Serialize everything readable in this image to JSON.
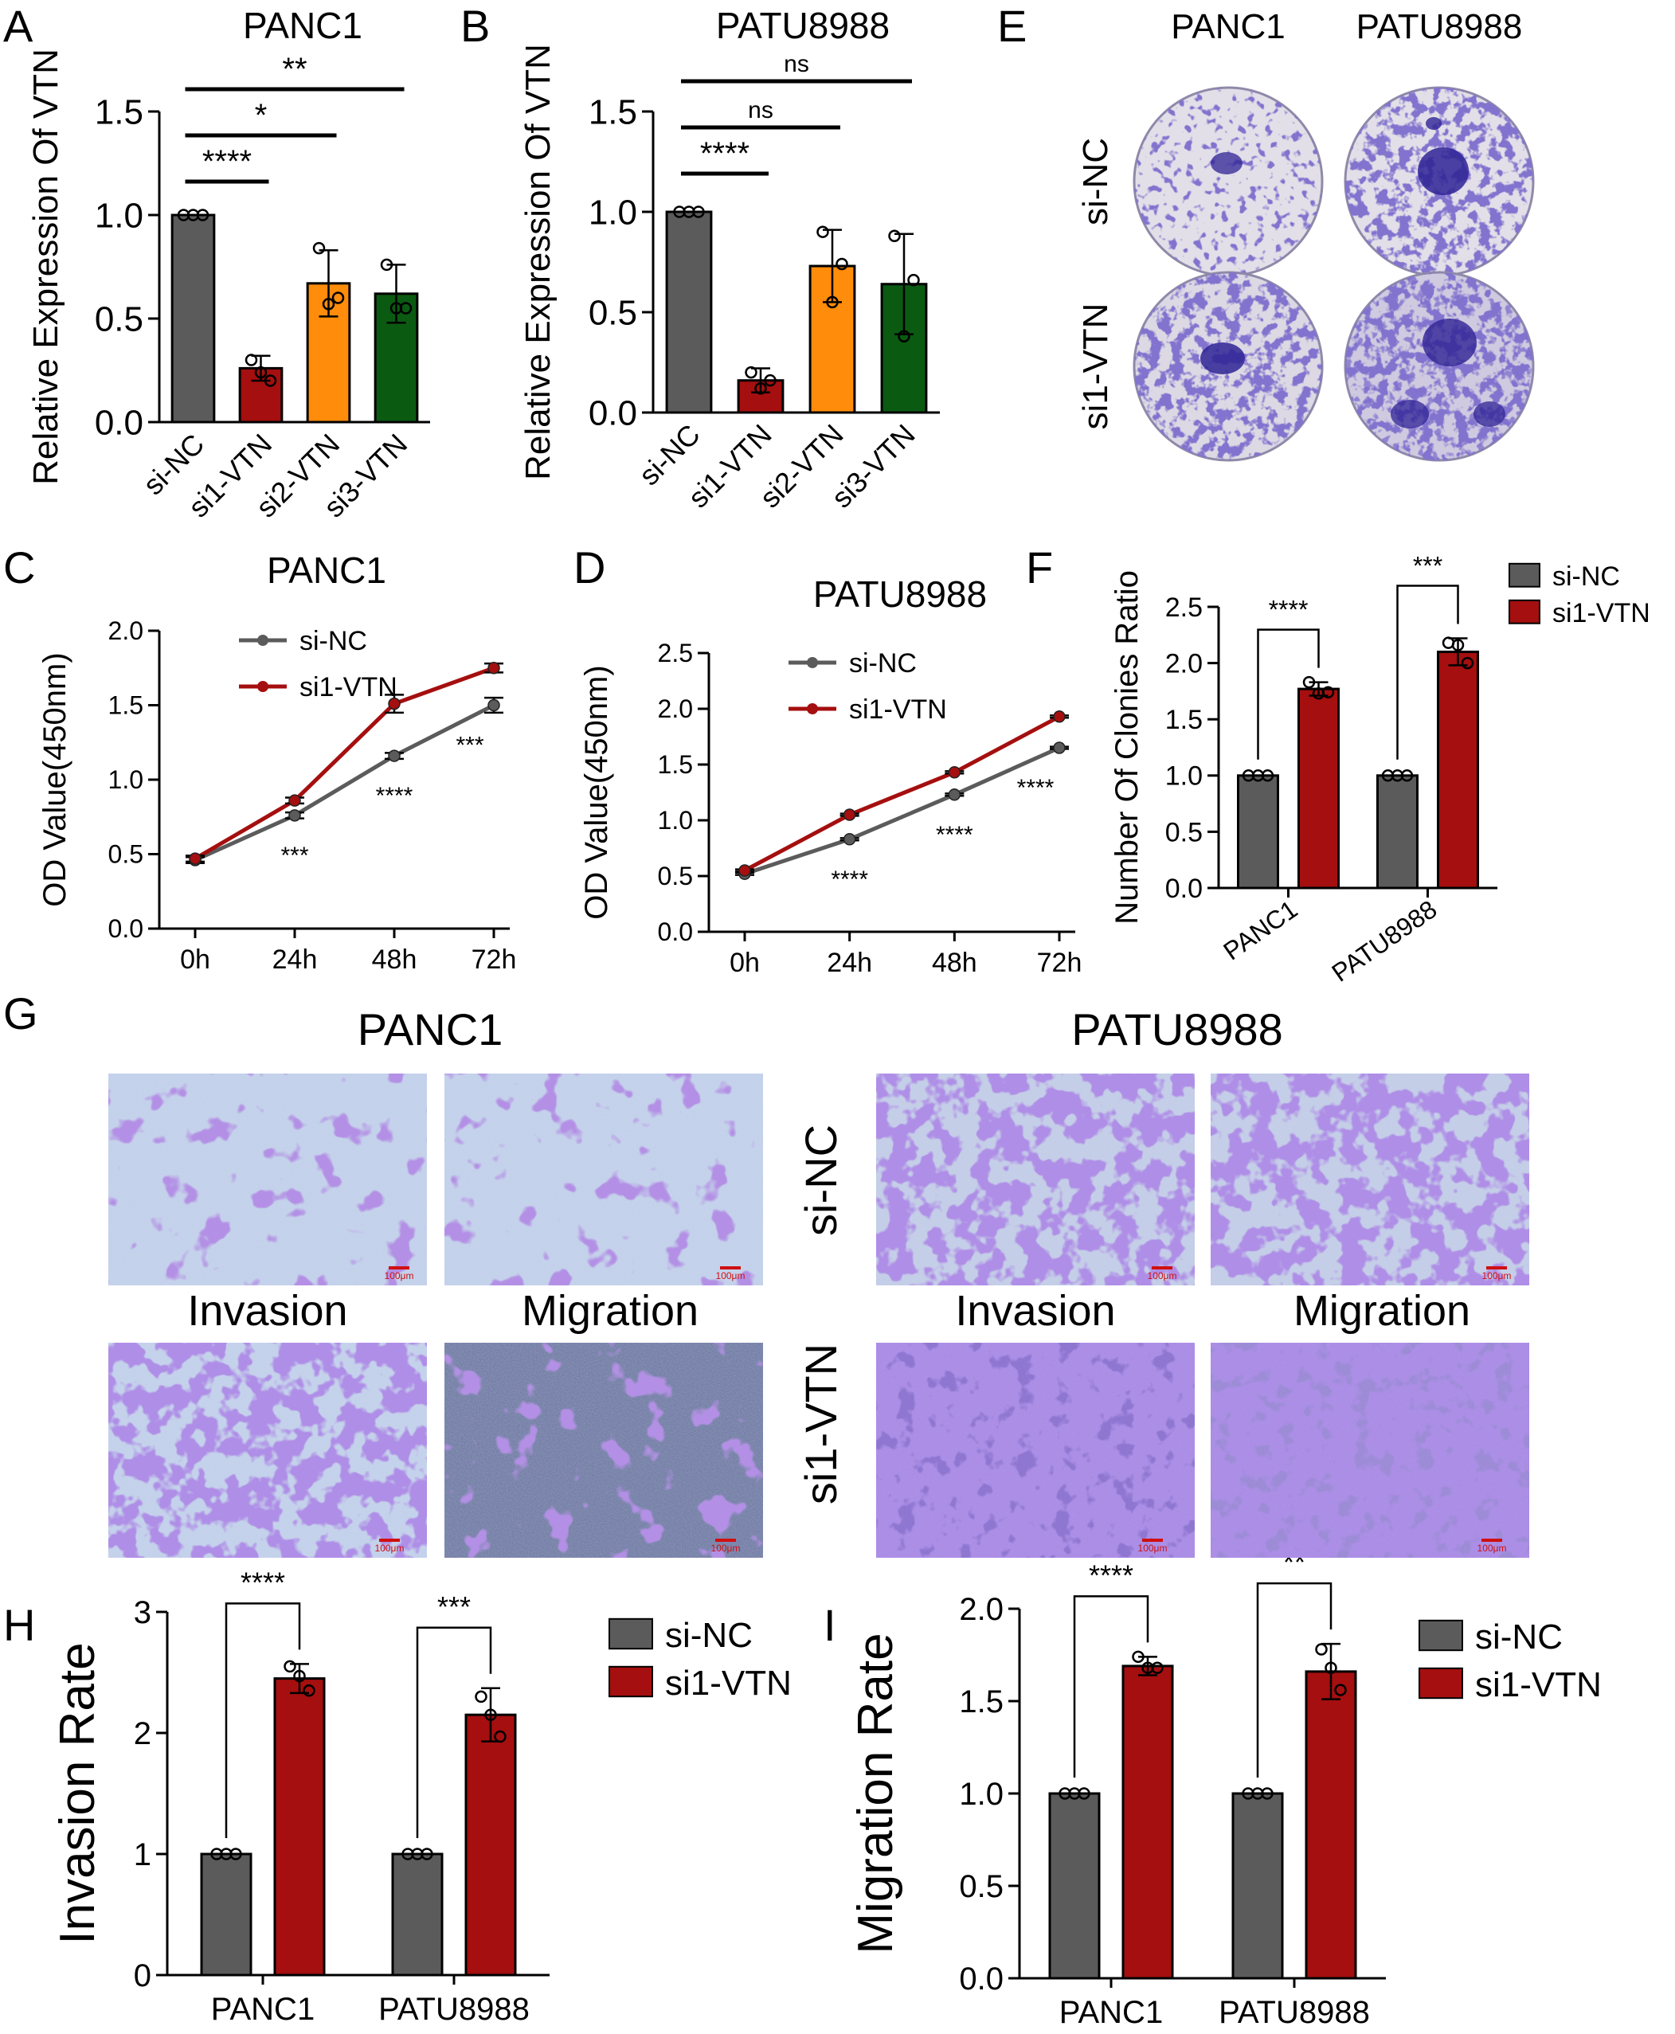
{
  "colors": {
    "si-NC": "#5b5b5b",
    "si1-VTN": "#a50f0f",
    "si2-VTN": "#ff8c0a",
    "si3-VTN": "#0b5a12",
    "plate_bg": "#dcd9e2",
    "stain": "#3f2fa6",
    "field_bg": "#c9d3ea",
    "field_stain": "#6b3fbf"
  },
  "panels": {
    "A": "A",
    "B": "B",
    "C": "C",
    "D": "D",
    "E": "E",
    "F": "F",
    "G": "G",
    "H": "H",
    "I": "I"
  },
  "chart_data": [
    {
      "id": "A",
      "type": "bar",
      "title": "PANC1",
      "ylabel": "Relative Expression Of VTN",
      "xlabel": "",
      "categories": [
        "si-NC",
        "si1-VTN",
        "si2-VTN",
        "si3-VTN"
      ],
      "values": [
        1.0,
        0.26,
        0.67,
        0.62
      ],
      "errors": [
        0.0,
        0.06,
        0.16,
        0.14
      ],
      "points": [
        [
          1.0,
          1.0,
          1.0
        ],
        [
          0.3,
          0.24,
          0.2
        ],
        [
          0.84,
          0.57,
          0.6
        ],
        [
          0.76,
          0.55,
          0.55
        ]
      ],
      "ylim": [
        0,
        1.5
      ],
      "yticks": [
        "0.0",
        "0.5",
        "1.0",
        "1.5"
      ],
      "significance": [
        {
          "from": "si-NC",
          "to": "si1-VTN",
          "label": "****"
        },
        {
          "from": "si-NC",
          "to": "si2-VTN",
          "label": "*"
        },
        {
          "from": "si-NC",
          "to": "si3-VTN",
          "label": "**"
        }
      ]
    },
    {
      "id": "B",
      "type": "bar",
      "title": "PATU8988",
      "ylabel": "Relative Expression Of VTN",
      "xlabel": "",
      "categories": [
        "si-NC",
        "si1-VTN",
        "si2-VTN",
        "si3-VTN"
      ],
      "values": [
        1.0,
        0.16,
        0.73,
        0.64
      ],
      "errors": [
        0.0,
        0.06,
        0.18,
        0.25
      ],
      "points": [
        [
          1.0,
          1.0,
          1.0
        ],
        [
          0.2,
          0.12,
          0.16
        ],
        [
          0.9,
          0.55,
          0.74
        ],
        [
          0.88,
          0.38,
          0.66
        ]
      ],
      "ylim": [
        0,
        1.5
      ],
      "yticks": [
        "0.0",
        "0.5",
        "1.0",
        "1.5"
      ],
      "significance": [
        {
          "from": "si-NC",
          "to": "si1-VTN",
          "label": "****"
        },
        {
          "from": "si-NC",
          "to": "si2-VTN",
          "label": "ns"
        },
        {
          "from": "si-NC",
          "to": "si3-VTN",
          "label": "ns"
        }
      ]
    },
    {
      "id": "C",
      "type": "line",
      "title": "PANC1",
      "ylabel": "OD Value(450nm)",
      "xlabel": "",
      "categories": [
        "0h",
        "24h",
        "48h",
        "72h"
      ],
      "series": [
        {
          "name": "si-NC",
          "values": [
            0.46,
            0.76,
            1.16,
            1.5
          ],
          "errors": [
            0.02,
            0.02,
            0.02,
            0.05
          ]
        },
        {
          "name": "si1-VTN",
          "values": [
            0.47,
            0.86,
            1.51,
            1.75
          ],
          "errors": [
            0.02,
            0.02,
            0.06,
            0.03
          ]
        }
      ],
      "ylim": [
        0,
        2.0
      ],
      "yticks": [
        "0.0",
        "0.5",
        "1.0",
        "1.5",
        "2.0"
      ],
      "significance": [
        {
          "at": "24h",
          "label": "***"
        },
        {
          "at": "48h",
          "label": "****"
        },
        {
          "at": "72h",
          "label": "***"
        }
      ],
      "legend": "top-left"
    },
    {
      "id": "D",
      "type": "line",
      "title": "PATU8988",
      "ylabel": "OD Value(450nm)",
      "xlabel": "",
      "categories": [
        "0h",
        "24h",
        "48h",
        "72h"
      ],
      "series": [
        {
          "name": "si-NC",
          "values": [
            0.52,
            0.83,
            1.23,
            1.65
          ],
          "errors": [
            0.01,
            0.01,
            0.01,
            0.01
          ]
        },
        {
          "name": "si1-VTN",
          "values": [
            0.55,
            1.05,
            1.43,
            1.93
          ],
          "errors": [
            0.01,
            0.01,
            0.01,
            0.01
          ]
        }
      ],
      "ylim": [
        0,
        2.5
      ],
      "yticks": [
        "0.0",
        "0.5",
        "1.0",
        "1.5",
        "2.0",
        "2.5"
      ],
      "significance": [
        {
          "at": "24h",
          "label": "****"
        },
        {
          "at": "48h",
          "label": "****"
        },
        {
          "at": "72h",
          "label": "****"
        }
      ],
      "legend": "top-left"
    },
    {
      "id": "F",
      "type": "bar",
      "title": "",
      "ylabel": "Number Of Clonies Ratio",
      "xlabel": "",
      "categories": [
        "PANC1",
        "PATU8988"
      ],
      "series": [
        {
          "name": "si-NC",
          "values": [
            1.0,
            1.0
          ],
          "errors": [
            0.0,
            0.0
          ],
          "points": [
            [
              1.0,
              1.0,
              1.0
            ],
            [
              1.0,
              1.0,
              1.0
            ]
          ]
        },
        {
          "name": "si1-VTN",
          "values": [
            1.77,
            2.1
          ],
          "errors": [
            0.06,
            0.12
          ],
          "points": [
            [
              1.83,
              1.73,
              1.74
            ],
            [
              2.18,
              2.16,
              2.0
            ]
          ]
        }
      ],
      "ylim": [
        0,
        2.5
      ],
      "yticks": [
        "0.0",
        "0.5",
        "1.0",
        "1.5",
        "2.0",
        "2.5"
      ],
      "significance": [
        {
          "at": "PANC1",
          "label": "****"
        },
        {
          "at": "PATU8988",
          "label": "***"
        }
      ],
      "legend": "top-right"
    },
    {
      "id": "H",
      "type": "bar",
      "title": "",
      "ylabel": "Invasion Rate",
      "xlabel": "",
      "categories": [
        "PANC1",
        "PATU8988"
      ],
      "series": [
        {
          "name": "si-NC",
          "values": [
            1.0,
            1.0
          ],
          "errors": [
            0.0,
            0.0
          ],
          "points": [
            [
              1.0,
              1.0,
              1.0
            ],
            [
              1.0,
              1.0,
              1.0
            ]
          ]
        },
        {
          "name": "si1-VTN",
          "values": [
            2.45,
            2.15
          ],
          "errors": [
            0.12,
            0.22
          ],
          "points": [
            [
              2.55,
              2.47,
              2.35
            ],
            [
              2.3,
              2.15,
              1.97
            ]
          ]
        }
      ],
      "ylim": [
        0,
        3
      ],
      "yticks": [
        "0",
        "1",
        "2",
        "3"
      ],
      "significance": [
        {
          "at": "PANC1",
          "label": "****"
        },
        {
          "at": "PATU8988",
          "label": "***"
        }
      ],
      "legend": "top-right"
    },
    {
      "id": "I",
      "type": "bar",
      "title": "",
      "ylabel": "Migration Rate",
      "xlabel": "",
      "categories": [
        "PANC1",
        "PATU8988"
      ],
      "series": [
        {
          "name": "si-NC",
          "values": [
            1.0,
            1.0
          ],
          "errors": [
            0.0,
            0.0
          ],
          "points": [
            [
              1.0,
              1.0,
              1.0
            ],
            [
              1.0,
              1.0,
              1.0
            ]
          ]
        },
        {
          "name": "si1-VTN",
          "values": [
            1.69,
            1.66
          ],
          "errors": [
            0.05,
            0.15
          ],
          "points": [
            [
              1.74,
              1.68,
              1.68
            ],
            [
              1.78,
              1.68,
              1.56
            ]
          ]
        }
      ],
      "ylim": [
        0,
        2.0
      ],
      "yticks": [
        "0.0",
        "0.5",
        "1.0",
        "1.5",
        "2.0"
      ],
      "significance": [
        {
          "at": "PANC1",
          "label": "****"
        },
        {
          "at": "PATU8988",
          "label": "**"
        }
      ],
      "legend": "top-right"
    }
  ],
  "panel_E": {
    "columns": [
      "PANC1",
      "PATU8988"
    ],
    "rows": [
      "si-NC",
      "si1-VTN"
    ]
  },
  "panel_G": {
    "titles": [
      "PANC1",
      "PATU8988"
    ],
    "rows": [
      "si-NC",
      "si1-VTN"
    ],
    "columns": [
      "Invasion",
      "Migration",
      "Invasion",
      "Migration"
    ],
    "scale_bar": "100μm"
  }
}
